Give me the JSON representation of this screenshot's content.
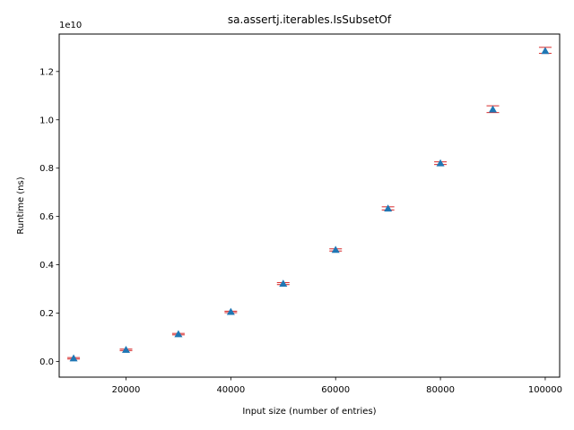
{
  "chart_data": {
    "type": "scatter",
    "title": "sa.assertj.iterables.IsSubsetOf",
    "xlabel": "Input size (number of entries)",
    "ylabel": "Runtime (ns)",
    "y_offset_label": "1e10",
    "xlim": [
      7250,
      102750
    ],
    "ylim": [
      -0.065,
      1.355
    ],
    "y_scale_factor": 10000000000,
    "x_ticks": [
      20000,
      40000,
      60000,
      80000,
      100000
    ],
    "x_tick_labels": [
      "20000",
      "40000",
      "60000",
      "80000",
      "100000"
    ],
    "y_ticks": [
      0.0,
      0.2,
      0.4,
      0.6,
      0.8,
      1.0,
      1.2
    ],
    "y_tick_labels": [
      "0.0",
      "0.2",
      "0.4",
      "0.6",
      "0.8",
      "1.0",
      "1.2"
    ],
    "grid": false,
    "marker": "triangle-up",
    "colors": {
      "marker": "#1f77b4",
      "errorbar": "#d62728"
    },
    "x": [
      10000,
      20000,
      30000,
      40000,
      50000,
      60000,
      70000,
      80000,
      90000,
      100000
    ],
    "y": [
      0.013,
      0.048,
      0.113,
      0.205,
      0.322,
      0.462,
      0.633,
      0.82,
      1.043,
      1.285
    ],
    "err_low": [
      0.01,
      0.045,
      0.11,
      0.202,
      0.318,
      0.457,
      0.627,
      0.815,
      1.03,
      1.275
    ],
    "err_high": [
      0.016,
      0.051,
      0.116,
      0.208,
      0.326,
      0.466,
      0.64,
      0.826,
      1.058,
      1.3
    ]
  }
}
